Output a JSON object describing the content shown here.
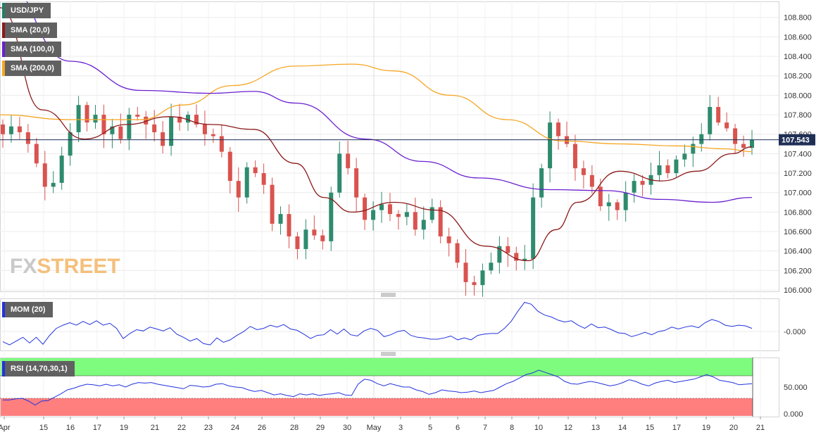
{
  "chart_data": [
    {
      "type": "candlestick",
      "symbol": "USD/JPY",
      "last_price": "107.543",
      "ylim": [
        106.0,
        108.95
      ],
      "y_ticks": [
        "108.800",
        "108.600",
        "108.400",
        "108.200",
        "108.000",
        "107.800",
        "107.600",
        "107.400",
        "107.200",
        "107.000",
        "106.800",
        "106.600",
        "106.400",
        "106.200",
        "106.000"
      ],
      "x_ticks": [
        "Apr",
        "15",
        "16",
        "17",
        "19",
        "21",
        "22",
        "23",
        "24",
        "26",
        "28",
        "29",
        "30",
        "May",
        "3",
        "5",
        "6",
        "7",
        "8",
        "10",
        "12",
        "13",
        "14",
        "15",
        "17",
        "19",
        "20",
        "21"
      ],
      "indicators": [
        {
          "name": "SMA (20,0)",
          "color": "#8b1a1a"
        },
        {
          "name": "SMA (100,0)",
          "color": "#6a1fd0"
        },
        {
          "name": "SMA (200,0)",
          "color": "#f5a623"
        }
      ],
      "close_anchors": [
        107.6,
        107.68,
        107.62,
        107.5,
        107.3,
        107.06,
        107.1,
        107.38,
        107.62,
        107.9,
        107.72,
        107.8,
        107.6,
        107.68,
        107.55,
        107.8,
        107.78,
        107.7,
        107.62,
        107.48,
        107.78,
        107.72,
        107.8,
        107.7,
        107.6,
        107.58,
        107.42,
        107.12,
        106.95,
        107.26,
        107.2,
        107.08,
        106.68,
        106.78,
        106.55,
        106.42,
        106.62,
        106.56,
        106.5,
        107.0,
        107.4,
        107.25,
        106.95,
        106.72,
        106.82,
        106.88,
        106.78,
        106.75,
        106.8,
        106.62,
        106.72,
        106.85,
        106.55,
        106.48,
        106.28,
        106.08,
        106.05,
        106.2,
        106.28,
        106.45,
        106.38,
        106.3,
        106.32,
        106.95,
        107.25,
        107.72,
        107.58,
        107.5,
        107.25,
        107.18,
        107.06,
        106.86,
        106.9,
        106.82,
        107.0,
        107.12,
        107.08,
        107.18,
        107.28,
        107.2,
        107.34,
        107.4,
        107.5,
        107.6,
        107.88,
        107.72,
        107.66,
        107.5,
        107.46,
        107.543
      ],
      "sma_20": [
        [
          0,
          108.9
        ],
        [
          60,
          107.85
        ],
        [
          120,
          107.55
        ],
        [
          180,
          107.7
        ],
        [
          240,
          107.78
        ],
        [
          300,
          107.7
        ],
        [
          360,
          107.65
        ],
        [
          420,
          107.3
        ],
        [
          460,
          106.95
        ],
        [
          500,
          106.8
        ],
        [
          560,
          106.9
        ],
        [
          620,
          106.82
        ],
        [
          690,
          106.45
        ],
        [
          750,
          106.3
        ],
        [
          790,
          106.62
        ],
        [
          820,
          106.9
        ],
        [
          880,
          107.22
        ],
        [
          940,
          107.12
        ],
        [
          990,
          107.22
        ],
        [
          1040,
          107.4
        ],
        [
          1068,
          107.47
        ]
      ],
      "sma_100": [
        [
          0,
          109.2
        ],
        [
          100,
          108.35
        ],
        [
          200,
          108.05
        ],
        [
          300,
          108.02
        ],
        [
          360,
          108.04
        ],
        [
          420,
          107.92
        ],
        [
          520,
          107.55
        ],
        [
          600,
          107.32
        ],
        [
          680,
          107.15
        ],
        [
          780,
          107.03
        ],
        [
          860,
          107.02
        ],
        [
          940,
          106.93
        ],
        [
          1010,
          106.9
        ],
        [
          1068,
          106.95
        ]
      ],
      "sma_200": [
        [
          0,
          107.8
        ],
        [
          100,
          107.75
        ],
        [
          200,
          107.75
        ],
        [
          260,
          107.9
        ],
        [
          330,
          108.1
        ],
        [
          420,
          108.3
        ],
        [
          500,
          108.32
        ],
        [
          560,
          108.25
        ],
        [
          640,
          108.0
        ],
        [
          720,
          107.75
        ],
        [
          800,
          107.53
        ],
        [
          880,
          107.5
        ],
        [
          960,
          107.48
        ],
        [
          1030,
          107.45
        ],
        [
          1068,
          107.42
        ]
      ]
    },
    {
      "type": "line",
      "title": "MOM (20)",
      "color": "#2233dd",
      "y_ticks": [
        "-0.000"
      ],
      "values": [
        -0.32,
        -0.42,
        -0.3,
        -0.18,
        -0.36,
        -0.18,
        -0.4,
        -0.12,
        0.1,
        0.2,
        0.28,
        0.2,
        0.32,
        0.22,
        0.34,
        0.2,
        0.26,
        0.1,
        -0.22,
        -0.06,
        0.06,
        0.02,
        0.14,
        0.08,
        0.02,
        0.12,
        -0.08,
        -0.18,
        -0.3,
        -0.22,
        -0.38,
        -0.42,
        -0.2,
        -0.34,
        -0.26,
        -0.12,
        0.0,
        0.16,
        0.06,
        0.1,
        0.2,
        0.14,
        0.22,
        0.08,
        0.04,
        -0.08,
        -0.22,
        -0.12,
        -0.1,
        0.06,
        -0.08,
        0.08,
        -0.1,
        -0.14,
        0.02,
        0.1,
        0.04,
        -0.16,
        -0.1,
        0.0,
        0.04,
        -0.12,
        -0.18,
        -0.2,
        -0.24,
        -0.24,
        -0.2,
        -0.14,
        -0.26,
        -0.2,
        -0.26,
        -0.12,
        -0.08,
        -0.06,
        -0.06,
        0.1,
        0.32,
        0.64,
        0.92,
        0.86,
        0.64,
        0.52,
        0.46,
        0.36,
        0.3,
        0.34,
        0.2,
        0.1,
        0.24,
        0.12,
        0.14,
        0.06,
        -0.04,
        -0.06,
        -0.16,
        -0.1,
        -0.02,
        -0.1,
        0.0,
        0.04,
        0.14,
        0.08,
        0.14,
        0.18,
        0.12,
        0.28,
        0.38,
        0.32,
        0.2,
        0.16,
        0.2,
        0.18,
        0.1
      ]
    },
    {
      "type": "line",
      "title": "RSI (14,70,30,1)",
      "color": "#2233dd",
      "overbought": 70,
      "oversold": 30,
      "ylim": [
        0,
        100
      ],
      "y_ticks": [
        "50.000",
        "0.000"
      ],
      "values": [
        27,
        27,
        29,
        30,
        25,
        18,
        25,
        26,
        32,
        38,
        45,
        48,
        52,
        55,
        54,
        52,
        55,
        52,
        54,
        50,
        55,
        58,
        57,
        58,
        55,
        53,
        51,
        49,
        47,
        53,
        52,
        50,
        51,
        55,
        56,
        52,
        50,
        49,
        45,
        42,
        44,
        40,
        36,
        38,
        35,
        33,
        38,
        36,
        38,
        35,
        37,
        38,
        40,
        36,
        35,
        55,
        64,
        62,
        56,
        52,
        56,
        53,
        50,
        50,
        45,
        42,
        37,
        40,
        45,
        43,
        42,
        40,
        41,
        43,
        40,
        42,
        44,
        50,
        56,
        60,
        66,
        72,
        75,
        80,
        76,
        72,
        68,
        60,
        56,
        55,
        58,
        60,
        58,
        55,
        52,
        54,
        58,
        63,
        60,
        55,
        52,
        57,
        60,
        62,
        58,
        60,
        62,
        64,
        68,
        72,
        68,
        62,
        60,
        58,
        54,
        55,
        56
      ]
    }
  ]
}
